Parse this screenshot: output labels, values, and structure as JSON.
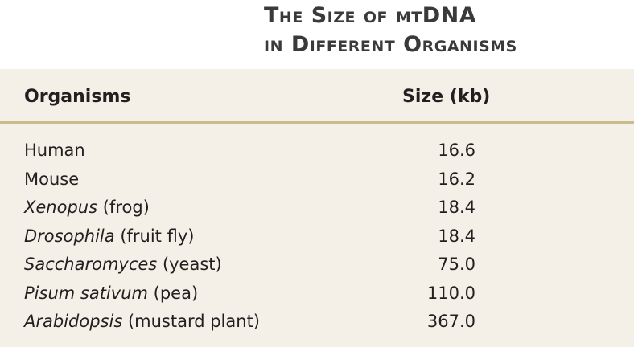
{
  "header": {
    "title_line1": "The Size of mtDNA",
    "title_line2": "in Different Organisms"
  },
  "table": {
    "columns": [
      "Organisms",
      "Size (kb)"
    ],
    "rows": [
      {
        "organism": {
          "italic": null,
          "plain": "Human"
        },
        "size": "16.6"
      },
      {
        "organism": {
          "italic": null,
          "plain": "Mouse"
        },
        "size": "16.2"
      },
      {
        "organism": {
          "italic": "Xenopus",
          "plain": "(frog)"
        },
        "size": "18.4"
      },
      {
        "organism": {
          "italic": "Drosophila",
          "plain": "(fruit fly)"
        },
        "size": "18.4"
      },
      {
        "organism": {
          "italic": "Saccharomyces",
          "plain": "(yeast)"
        },
        "size": "75.0"
      },
      {
        "organism": {
          "italic": "Pisum sativum",
          "plain": "(pea)"
        },
        "size": "110.0"
      },
      {
        "organism": {
          "italic": "Arabidopsis",
          "plain": "(mustard plant)"
        },
        "size": "367.0"
      }
    ]
  }
}
